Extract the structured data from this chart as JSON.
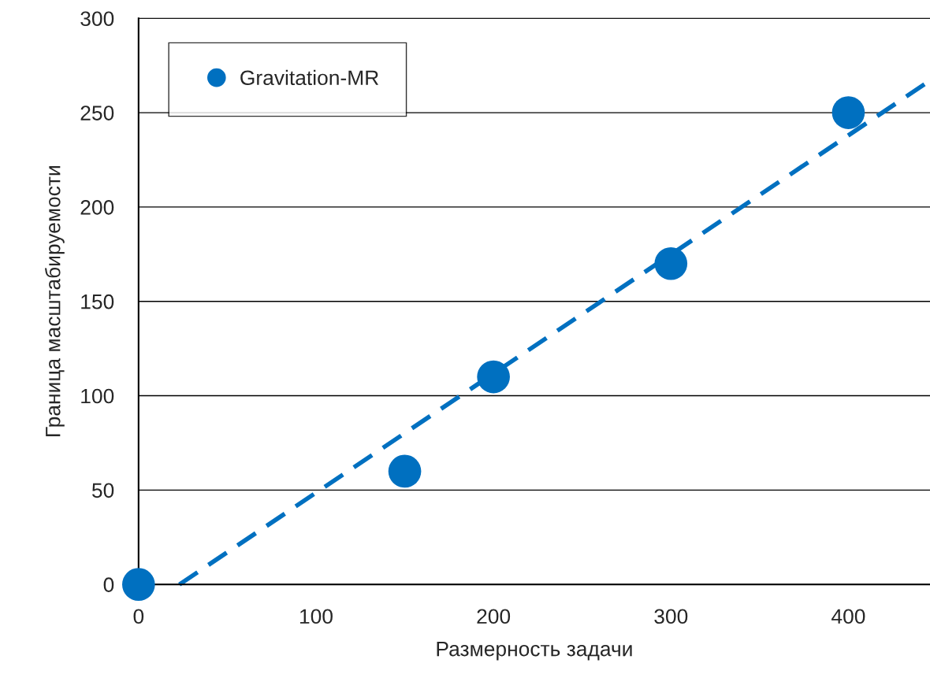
{
  "chart_data": {
    "type": "scatter",
    "xlabel": "Размерность задачи",
    "ylabel": "Граница масштабируемости",
    "x": [
      0,
      150,
      200,
      300,
      400
    ],
    "series": [
      {
        "name": "Gravitation-MR",
        "color": "#0070c0",
        "values": [
          0,
          60,
          110,
          170,
          250
        ],
        "marker": "circle"
      },
      {
        "type": "line",
        "color": "#0070c0",
        "x": [
          23,
          446
        ],
        "values": [
          0,
          267
        ],
        "line_style": "dashed",
        "marker": "none"
      }
    ],
    "xlim": [
      0,
      446
    ],
    "ylim": [
      0,
      300
    ],
    "xticks": [
      0,
      100,
      200,
      300,
      400
    ],
    "yticks": [
      0,
      50,
      100,
      150,
      200,
      250,
      300
    ],
    "grid": "y",
    "legend": "top left"
  }
}
